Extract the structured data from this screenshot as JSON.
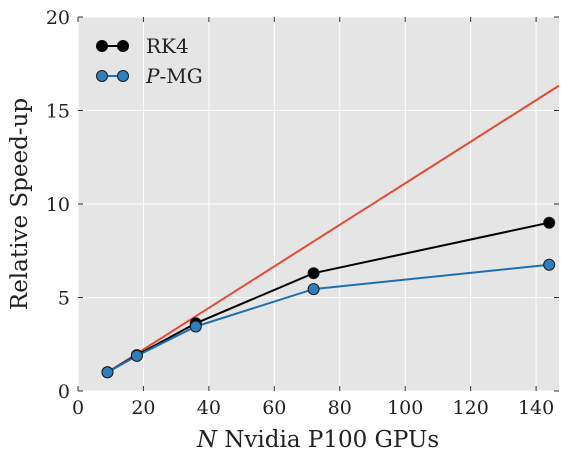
{
  "chart_data": {
    "type": "line",
    "title": "",
    "xlabel_var": "N",
    "xlabel_rest": " Nvidia P100 GPUs",
    "ylabel": "Relative Speed-up",
    "xlim": [
      0,
      147
    ],
    "ylim": [
      0,
      20
    ],
    "xticks": [
      0,
      20,
      40,
      60,
      80,
      100,
      120,
      140
    ],
    "yticks": [
      0,
      5,
      10,
      15,
      20
    ],
    "xtick_labels": [
      "0",
      "20",
      "40",
      "60",
      "80",
      "100",
      "120",
      "140"
    ],
    "ytick_labels": [
      "0",
      "5",
      "10",
      "15",
      "20"
    ],
    "grid": true,
    "background": "#e5e5e5",
    "legend_position": "upper-left",
    "ideal_line": {
      "x": [
        9,
        147
      ],
      "y": [
        1,
        16.33
      ],
      "color": "#e24a33"
    },
    "series": [
      {
        "name": "RK4",
        "x": [
          9,
          18,
          36,
          72,
          144
        ],
        "y": [
          1.0,
          1.92,
          3.62,
          6.3,
          9.0
        ],
        "line_color": "#000000",
        "marker_color": "#000000"
      },
      {
        "name_var": "P",
        "name_rest": "-MG",
        "x": [
          9,
          18,
          36,
          72,
          144
        ],
        "y": [
          1.0,
          1.88,
          3.45,
          5.45,
          6.75
        ],
        "line_color": "#1f6eb3",
        "marker_color": "#2e7fc0"
      }
    ]
  }
}
